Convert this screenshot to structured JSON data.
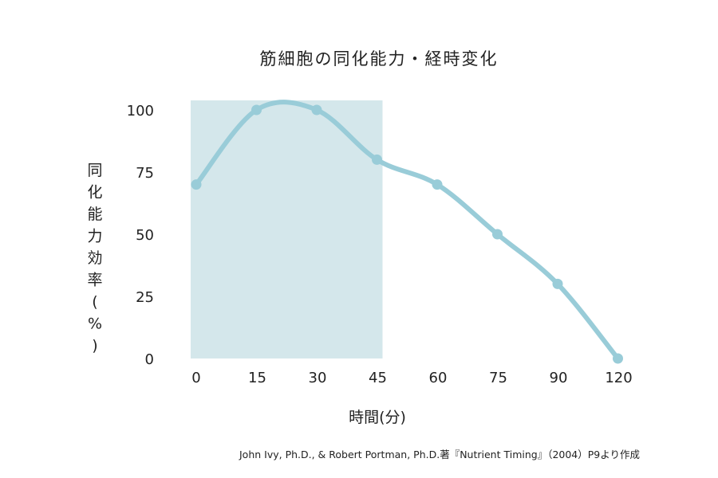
{
  "chart_data": {
    "type": "line",
    "title": "筋細胞の同化能力・経時変化",
    "xlabel": "時間(分)",
    "ylabel": "同化能力効率(%)",
    "categories": [
      "0",
      "15",
      "30",
      "45",
      "60",
      "75",
      "90",
      "120"
    ],
    "values": [
      70,
      100,
      100,
      80,
      70,
      50,
      30,
      0
    ],
    "yticks": [
      "100",
      "75",
      "50",
      "25",
      "0"
    ],
    "ytick_values": [
      100,
      75,
      50,
      25,
      0
    ],
    "ylim": [
      0,
      100
    ],
    "highlight_range": [
      "0",
      "45"
    ],
    "grid": false,
    "legend": "none",
    "source": "John Ivy, Ph.D., & Robert Portman, Ph.D.著『Nutrient Timing』（2004）P9より作成",
    "colors": {
      "line": "#99ccd8",
      "highlight": "#d4e7eb",
      "text": "#222222"
    }
  }
}
